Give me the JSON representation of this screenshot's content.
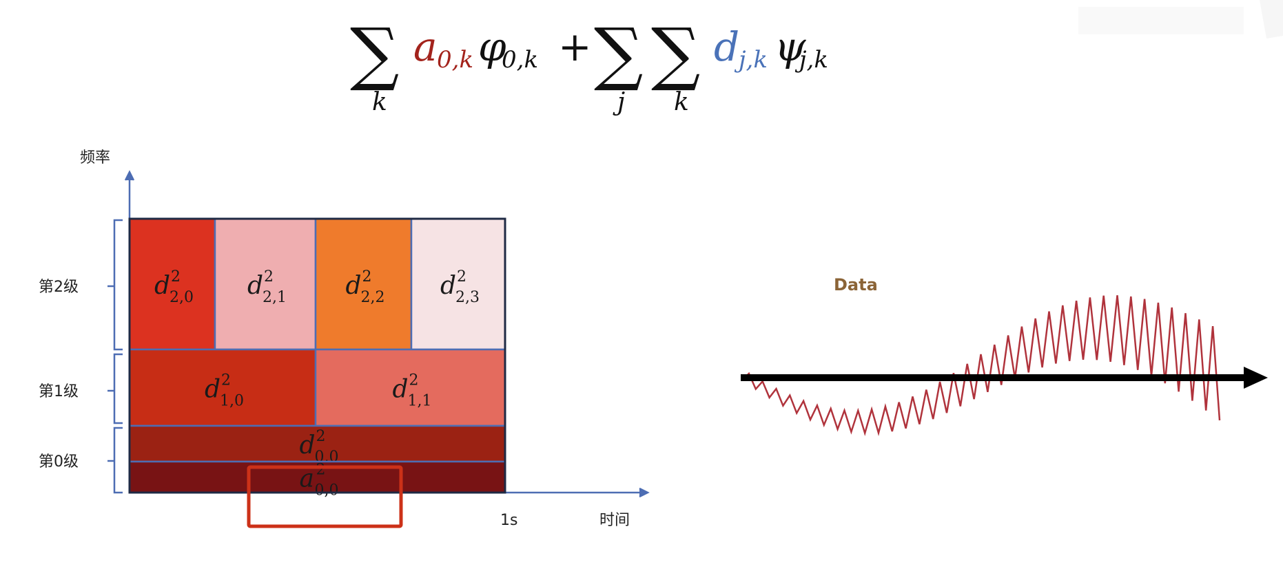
{
  "formula": {
    "sum1_index": "k",
    "a_symbol": "a",
    "a_sub": "0,k",
    "phi_symbol": "φ",
    "phi_sub": "0,k",
    "plus": "+",
    "sum2_index": "j",
    "sum3_index": "k",
    "d_symbol": "d",
    "d_sub": "j,k",
    "psi_symbol": "ψ",
    "psi_sub": "j,k",
    "sigma": "∑",
    "colors": {
      "a": "#a3231c",
      "d": "#4a72b8",
      "default": "#111111"
    }
  },
  "diagram": {
    "y_axis_label": "频率",
    "x_axis_label": "时间",
    "x_end_tick": "1s",
    "levels": [
      {
        "label": "第2级"
      },
      {
        "label": "第1级"
      },
      {
        "label": "第0级"
      }
    ],
    "cells": [
      {
        "base": "d",
        "sup": "2",
        "sub": "2,0",
        "color": "#dc3220"
      },
      {
        "base": "d",
        "sup": "2",
        "sub": "2,1",
        "color": "#efaeb0"
      },
      {
        "base": "d",
        "sup": "2",
        "sub": "2,2",
        "color": "#ef7b2c"
      },
      {
        "base": "d",
        "sup": "2",
        "sub": "2,3",
        "color": "#f6e3e4"
      },
      {
        "base": "d",
        "sup": "2",
        "sub": "1,0",
        "color": "#c72d15"
      },
      {
        "base": "d",
        "sup": "2",
        "sub": "1,1",
        "color": "#e46b5e"
      },
      {
        "base": "d",
        "sup": "2",
        "sub": "0,0",
        "color": "#9b2213"
      },
      {
        "base": "a",
        "sup": "2",
        "sub": "0,0",
        "color": "#781314"
      }
    ],
    "grid_line_color": "#4d6db3",
    "highlight_color": "#cc3118"
  },
  "signal": {
    "label": "Data",
    "label_color": "#8b6437",
    "wave_color": "#b0333c",
    "axis_color": "#000000"
  }
}
